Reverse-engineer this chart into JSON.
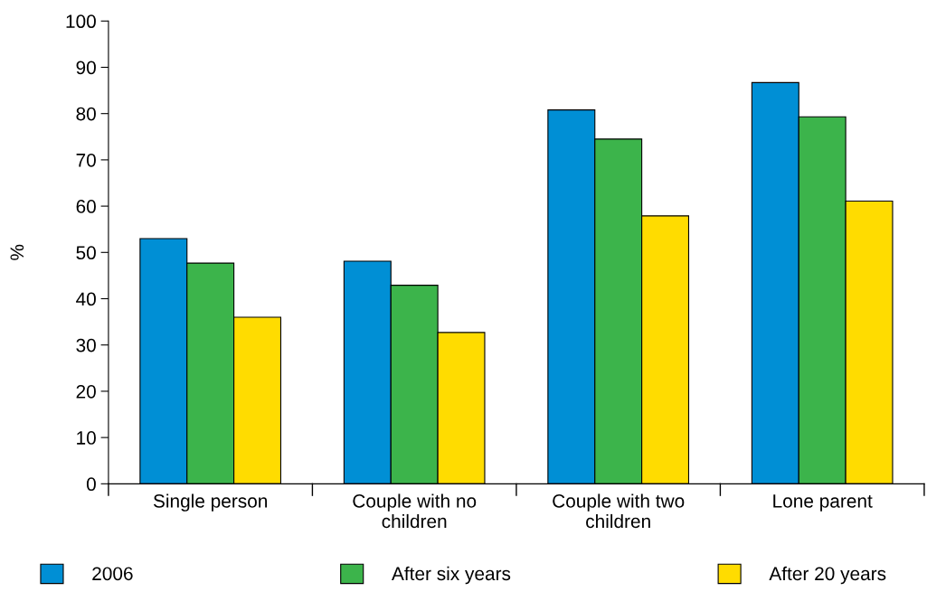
{
  "chart_data": {
    "type": "bar",
    "ylabel": "%",
    "categories": [
      "Single person",
      "Couple with no\nchildren",
      "Couple with two\nchildren",
      "Lone parent"
    ],
    "series": [
      {
        "name": "2006",
        "color": "#008fd5",
        "values": [
          53.0,
          48.1,
          80.8,
          86.7
        ]
      },
      {
        "name": "After six years",
        "color": "#3cb44b",
        "values": [
          47.7,
          42.9,
          74.5,
          79.3
        ]
      },
      {
        "name": "After 20 years",
        "color": "#ffdc00",
        "values": [
          36.0,
          32.7,
          57.9,
          61.1
        ]
      }
    ],
    "ylim": [
      0,
      100
    ],
    "yticks": [
      0,
      10,
      20,
      30,
      40,
      50,
      60,
      70,
      80,
      90,
      100
    ],
    "grid": false,
    "legend": "bottom"
  }
}
